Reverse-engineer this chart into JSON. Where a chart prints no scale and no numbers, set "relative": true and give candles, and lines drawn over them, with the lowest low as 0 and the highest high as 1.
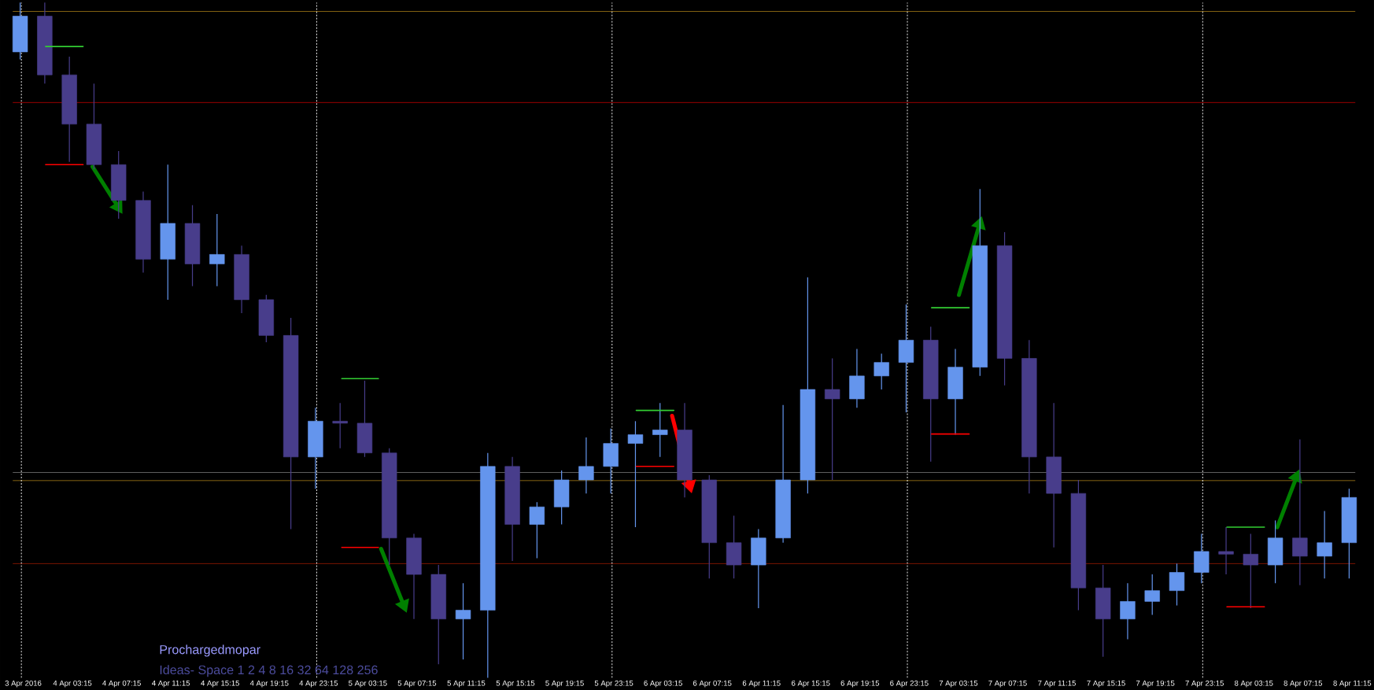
{
  "chart_data": {
    "type": "candlestick",
    "relative": true,
    "x": [
      "2016-04-03T23:00",
      "2016-04-04T01:00",
      "2016-04-04T03:00",
      "2016-04-04T05:00",
      "2016-04-04T07:00",
      "2016-04-04T09:00",
      "2016-04-04T11:00",
      "2016-04-04T13:00",
      "2016-04-04T15:00",
      "2016-04-04T17:00",
      "2016-04-04T19:00",
      "2016-04-04T21:00",
      "2016-04-04T23:00",
      "2016-04-05T01:00",
      "2016-04-05T03:00",
      "2016-04-05T05:00",
      "2016-04-05T07:00",
      "2016-04-05T09:00",
      "2016-04-05T11:00",
      "2016-04-05T13:00",
      "2016-04-05T15:00",
      "2016-04-05T17:00",
      "2016-04-05T19:00",
      "2016-04-05T21:00",
      "2016-04-05T23:00",
      "2016-04-06T01:00",
      "2016-04-06T03:00",
      "2016-04-06T05:00",
      "2016-04-06T07:00",
      "2016-04-06T09:00",
      "2016-04-06T11:00",
      "2016-04-06T13:00",
      "2016-04-06T15:00",
      "2016-04-06T17:00",
      "2016-04-06T19:00",
      "2016-04-06T21:00",
      "2016-04-06T23:00",
      "2016-04-07T01:00",
      "2016-04-07T03:00",
      "2016-04-07T05:00",
      "2016-04-07T07:00",
      "2016-04-07T09:00",
      "2016-04-07T11:00",
      "2016-04-07T13:00",
      "2016-04-07T15:00",
      "2016-04-07T17:00",
      "2016-04-07T19:00",
      "2016-04-07T21:00",
      "2016-04-07T23:00",
      "2016-04-08T01:00",
      "2016-04-08T03:00",
      "2016-04-08T05:00",
      "2016-04-08T07:00",
      "2016-04-08T09:00",
      "2016-04-08T11:00"
    ],
    "ohlc": [
      [
        0.927,
        1.0,
        0.916,
        0.98
      ],
      [
        0.98,
        1.0,
        0.88,
        0.893
      ],
      [
        0.893,
        0.92,
        0.764,
        0.82
      ],
      [
        0.82,
        0.88,
        0.753,
        0.76
      ],
      [
        0.76,
        0.78,
        0.68,
        0.707
      ],
      [
        0.707,
        0.72,
        0.6,
        0.62
      ],
      [
        0.62,
        0.76,
        0.56,
        0.673
      ],
      [
        0.673,
        0.7,
        0.58,
        0.613
      ],
      [
        0.613,
        0.687,
        0.58,
        0.627
      ],
      [
        0.627,
        0.64,
        0.54,
        0.56
      ],
      [
        0.56,
        0.567,
        0.497,
        0.507
      ],
      [
        0.507,
        0.533,
        0.22,
        0.327
      ],
      [
        0.327,
        0.4,
        0.28,
        0.38
      ],
      [
        0.38,
        0.407,
        0.34,
        0.377
      ],
      [
        0.377,
        0.44,
        0.327,
        0.333
      ],
      [
        0.333,
        0.34,
        0.167,
        0.207
      ],
      [
        0.207,
        0.213,
        0.087,
        0.153
      ],
      [
        0.153,
        0.167,
        0.02,
        0.087
      ],
      [
        0.087,
        0.14,
        0.027,
        0.1
      ],
      [
        0.1,
        0.333,
        0.0,
        0.313
      ],
      [
        0.313,
        0.327,
        0.173,
        0.227
      ],
      [
        0.227,
        0.26,
        0.177,
        0.253
      ],
      [
        0.253,
        0.307,
        0.227,
        0.293
      ],
      [
        0.293,
        0.356,
        0.273,
        0.313
      ],
      [
        0.313,
        0.369,
        0.273,
        0.347
      ],
      [
        0.347,
        0.38,
        0.223,
        0.36
      ],
      [
        0.36,
        0.407,
        0.327,
        0.367
      ],
      [
        0.367,
        0.407,
        0.267,
        0.293
      ],
      [
        0.293,
        0.3,
        0.147,
        0.2
      ],
      [
        0.2,
        0.24,
        0.147,
        0.167
      ],
      [
        0.167,
        0.22,
        0.103,
        0.207
      ],
      [
        0.207,
        0.404,
        0.2,
        0.293
      ],
      [
        0.293,
        0.593,
        0.273,
        0.427
      ],
      [
        0.427,
        0.473,
        0.293,
        0.413
      ],
      [
        0.413,
        0.487,
        0.4,
        0.447
      ],
      [
        0.447,
        0.48,
        0.427,
        0.467
      ],
      [
        0.467,
        0.553,
        0.393,
        0.5
      ],
      [
        0.5,
        0.52,
        0.32,
        0.413
      ],
      [
        0.413,
        0.487,
        0.36,
        0.46
      ],
      [
        0.46,
        0.724,
        0.447,
        0.64
      ],
      [
        0.64,
        0.66,
        0.433,
        0.473
      ],
      [
        0.473,
        0.5,
        0.273,
        0.327
      ],
      [
        0.327,
        0.407,
        0.193,
        0.273
      ],
      [
        0.273,
        0.293,
        0.1,
        0.133
      ],
      [
        0.133,
        0.167,
        0.031,
        0.087
      ],
      [
        0.087,
        0.14,
        0.057,
        0.113
      ],
      [
        0.113,
        0.153,
        0.093,
        0.129
      ],
      [
        0.129,
        0.169,
        0.107,
        0.156
      ],
      [
        0.156,
        0.213,
        0.14,
        0.187
      ],
      [
        0.187,
        0.223,
        0.153,
        0.183
      ],
      [
        0.183,
        0.213,
        0.103,
        0.167
      ],
      [
        0.167,
        0.233,
        0.14,
        0.207
      ],
      [
        0.207,
        0.353,
        0.137,
        0.18
      ],
      [
        0.18,
        0.247,
        0.147,
        0.2
      ],
      [
        0.2,
        0.28,
        0.147,
        0.267
      ]
    ],
    "colors": [
      "#6495ed",
      "#483d8b",
      "#483d8b",
      "#483d8b",
      "#483d8b",
      "#483d8b",
      "#6495ed",
      "#483d8b",
      "#6495ed",
      "#483d8b",
      "#483d8b",
      "#483d8b",
      "#6495ed",
      "#483d8b",
      "#483d8b",
      "#483d8b",
      "#483d8b",
      "#483d8b",
      "#6495ed",
      "#6495ed",
      "#483d8b",
      "#6495ed",
      "#6495ed",
      "#6495ed",
      "#6495ed",
      "#6495ed",
      "#6495ed",
      "#483d8b",
      "#483d8b",
      "#483d8b",
      "#6495ed",
      "#6495ed",
      "#6495ed",
      "#483d8b",
      "#6495ed",
      "#6495ed",
      "#6495ed",
      "#483d8b",
      "#6495ed",
      "#6495ed",
      "#483d8b",
      "#483d8b",
      "#483d8b",
      "#483d8b",
      "#483d8b",
      "#6495ed",
      "#6495ed",
      "#6495ed",
      "#6495ed",
      "#483d8b",
      "#483d8b",
      "#6495ed",
      "#483d8b",
      "#6495ed",
      "#6495ed"
    ],
    "xlim": [
      "2016-04-03T22:24",
      "2016-04-08T11:30"
    ],
    "xticks": [
      {
        "value": "2016-04-03T23:15",
        "label": "3 Apr 2016"
      },
      {
        "value": "2016-04-04T03:15",
        "label": "4 Apr 03:15"
      },
      {
        "value": "2016-04-04T07:15",
        "label": "4 Apr 07:15"
      },
      {
        "value": "2016-04-04T11:15",
        "label": "4 Apr 11:15"
      },
      {
        "value": "2016-04-04T15:15",
        "label": "4 Apr 15:15"
      },
      {
        "value": "2016-04-04T19:15",
        "label": "4 Apr 19:15"
      },
      {
        "value": "2016-04-04T23:15",
        "label": "4 Apr 23:15"
      },
      {
        "value": "2016-04-05T03:15",
        "label": "5 Apr 03:15"
      },
      {
        "value": "2016-04-05T07:15",
        "label": "5 Apr 07:15"
      },
      {
        "value": "2016-04-05T11:15",
        "label": "5 Apr 11:15"
      },
      {
        "value": "2016-04-05T15:15",
        "label": "5 Apr 15:15"
      },
      {
        "value": "2016-04-05T19:15",
        "label": "5 Apr 19:15"
      },
      {
        "value": "2016-04-05T23:15",
        "label": "5 Apr 23:15"
      },
      {
        "value": "2016-04-06T03:15",
        "label": "6 Apr 03:15"
      },
      {
        "value": "2016-04-06T07:15",
        "label": "6 Apr 07:15"
      },
      {
        "value": "2016-04-06T11:15",
        "label": "6 Apr 11:15"
      },
      {
        "value": "2016-04-06T15:15",
        "label": "6 Apr 15:15"
      },
      {
        "value": "2016-04-06T19:15",
        "label": "6 Apr 19:15"
      },
      {
        "value": "2016-04-06T23:15",
        "label": "6 Apr 23:15"
      },
      {
        "value": "2016-04-07T03:15",
        "label": "7 Apr 03:15"
      },
      {
        "value": "2016-04-07T07:15",
        "label": "7 Apr 07:15"
      },
      {
        "value": "2016-04-07T11:15",
        "label": "7 Apr 11:15"
      },
      {
        "value": "2016-04-07T15:15",
        "label": "7 Apr 15:15"
      },
      {
        "value": "2016-04-07T19:15",
        "label": "7 Apr 19:15"
      },
      {
        "value": "2016-04-07T23:15",
        "label": "7 Apr 23:15"
      },
      {
        "value": "2016-04-08T03:15",
        "label": "8 Apr 03:15"
      },
      {
        "value": "2016-04-08T07:15",
        "label": "8 Apr 07:15"
      },
      {
        "value": "2016-04-08T11:15",
        "label": "8 Apr 11:15"
      }
    ],
    "ref_lines": [
      {
        "axis": "y",
        "value": 0.987,
        "color": "#daa520",
        "line_style": "solid"
      },
      {
        "axis": "y",
        "value": 0.852,
        "color": "#ff0000",
        "line_style": "solid"
      },
      {
        "axis": "y",
        "value": 0.304,
        "color": "#a0a0a0",
        "line_style": "solid"
      },
      {
        "axis": "y",
        "value": 0.292,
        "color": "#daa520",
        "line_style": "solid"
      },
      {
        "axis": "y",
        "value": 0.169,
        "color": "#cc2200",
        "line_style": "solid"
      },
      {
        "axis": "x",
        "value": "2016-04-03T23:06",
        "color": "#ffffff",
        "line_style": "dotted"
      },
      {
        "axis": "x",
        "value": "2016-04-04T23:06",
        "color": "#ffffff",
        "line_style": "dotted"
      },
      {
        "axis": "x",
        "value": "2016-04-05T23:06",
        "color": "#ffffff",
        "line_style": "dotted"
      },
      {
        "axis": "x",
        "value": "2016-04-06T23:06",
        "color": "#ffffff",
        "line_style": "dotted"
      },
      {
        "axis": "x",
        "value": "2016-04-07T23:06",
        "color": "#ffffff",
        "line_style": "dotted"
      }
    ],
    "series": [
      {
        "type": "line",
        "color": "#32cd32",
        "x": [
          "2016-04-04T01:04",
          "2016-04-04T04:07"
        ],
        "values": [
          0.935,
          0.935
        ]
      },
      {
        "type": "line",
        "color": "#ff0000",
        "x": [
          "2016-04-04T01:04",
          "2016-04-04T04:07"
        ],
        "values": [
          0.76,
          0.76
        ]
      },
      {
        "type": "line",
        "color": "#32cd32",
        "x": [
          "2016-04-05T01:08",
          "2016-04-05T04:07"
        ],
        "values": [
          0.443,
          0.443
        ]
      },
      {
        "type": "line",
        "color": "#ff0000",
        "x": [
          "2016-04-05T01:08",
          "2016-04-05T04:07"
        ],
        "values": [
          0.193,
          0.193
        ]
      },
      {
        "type": "line",
        "color": "#32cd32",
        "x": [
          "2016-04-06T01:04",
          "2016-04-06T04:07"
        ],
        "values": [
          0.396,
          0.396
        ]
      },
      {
        "type": "line",
        "color": "#ff0000",
        "x": [
          "2016-04-06T01:04",
          "2016-04-06T04:07"
        ],
        "values": [
          0.313,
          0.313
        ]
      },
      {
        "type": "line",
        "color": "#32cd32",
        "x": [
          "2016-04-07T01:04",
          "2016-04-07T04:07"
        ],
        "values": [
          0.548,
          0.548
        ]
      },
      {
        "type": "line",
        "color": "#ff0000",
        "x": [
          "2016-04-07T01:04",
          "2016-04-07T04:07"
        ],
        "values": [
          0.361,
          0.361
        ]
      },
      {
        "type": "line",
        "color": "#32cd32",
        "x": [
          "2016-04-08T01:04",
          "2016-04-08T04:07"
        ],
        "values": [
          0.223,
          0.223
        ]
      },
      {
        "type": "line",
        "color": "#ff0000",
        "x": [
          "2016-04-08T01:04",
          "2016-04-08T04:07"
        ],
        "values": [
          0.105,
          0.105
        ]
      }
    ],
    "annotations": [
      "Prochargedmopar",
      "Ideas- Space 1 2 4 8 16 32 64 128 256"
    ]
  }
}
